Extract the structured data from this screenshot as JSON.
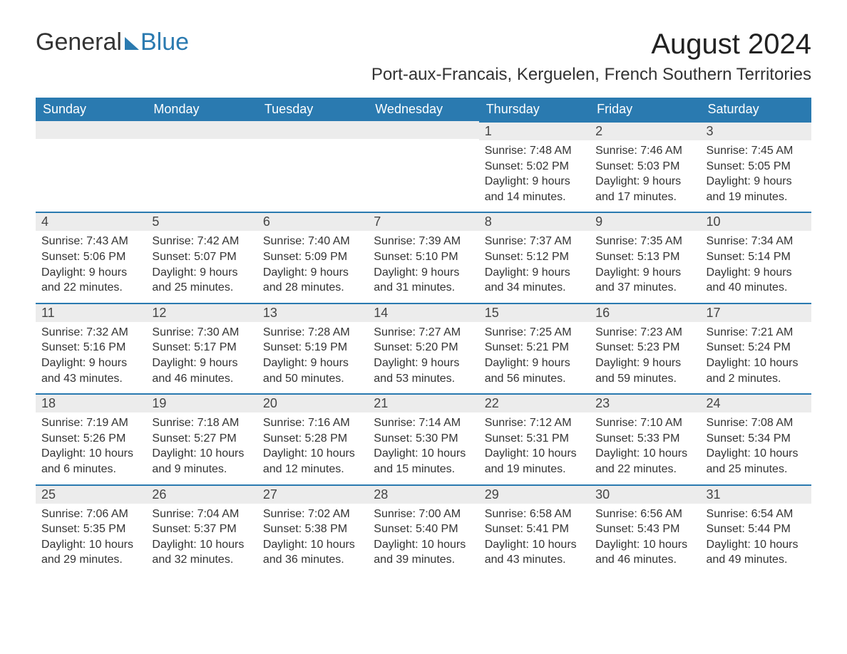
{
  "logo": {
    "general": "General",
    "blue": "Blue"
  },
  "month_title": "August 2024",
  "location": "Port-aux-Francais, Kerguelen, French Southern Territories",
  "colors": {
    "header_bg": "#2a7ab0",
    "header_text": "#ffffff",
    "daynum_bg": "#ececec",
    "daynum_border_top": "#2a7ab0",
    "body_text": "#333333",
    "page_bg": "#ffffff"
  },
  "day_headers": [
    "Sunday",
    "Monday",
    "Tuesday",
    "Wednesday",
    "Thursday",
    "Friday",
    "Saturday"
  ],
  "weeks": [
    [
      null,
      null,
      null,
      null,
      {
        "d": "1",
        "sunrise": "Sunrise: 7:48 AM",
        "sunset": "Sunset: 5:02 PM",
        "daylight": "Daylight: 9 hours and 14 minutes."
      },
      {
        "d": "2",
        "sunrise": "Sunrise: 7:46 AM",
        "sunset": "Sunset: 5:03 PM",
        "daylight": "Daylight: 9 hours and 17 minutes."
      },
      {
        "d": "3",
        "sunrise": "Sunrise: 7:45 AM",
        "sunset": "Sunset: 5:05 PM",
        "daylight": "Daylight: 9 hours and 19 minutes."
      }
    ],
    [
      {
        "d": "4",
        "sunrise": "Sunrise: 7:43 AM",
        "sunset": "Sunset: 5:06 PM",
        "daylight": "Daylight: 9 hours and 22 minutes."
      },
      {
        "d": "5",
        "sunrise": "Sunrise: 7:42 AM",
        "sunset": "Sunset: 5:07 PM",
        "daylight": "Daylight: 9 hours and 25 minutes."
      },
      {
        "d": "6",
        "sunrise": "Sunrise: 7:40 AM",
        "sunset": "Sunset: 5:09 PM",
        "daylight": "Daylight: 9 hours and 28 minutes."
      },
      {
        "d": "7",
        "sunrise": "Sunrise: 7:39 AM",
        "sunset": "Sunset: 5:10 PM",
        "daylight": "Daylight: 9 hours and 31 minutes."
      },
      {
        "d": "8",
        "sunrise": "Sunrise: 7:37 AM",
        "sunset": "Sunset: 5:12 PM",
        "daylight": "Daylight: 9 hours and 34 minutes."
      },
      {
        "d": "9",
        "sunrise": "Sunrise: 7:35 AM",
        "sunset": "Sunset: 5:13 PM",
        "daylight": "Daylight: 9 hours and 37 minutes."
      },
      {
        "d": "10",
        "sunrise": "Sunrise: 7:34 AM",
        "sunset": "Sunset: 5:14 PM",
        "daylight": "Daylight: 9 hours and 40 minutes."
      }
    ],
    [
      {
        "d": "11",
        "sunrise": "Sunrise: 7:32 AM",
        "sunset": "Sunset: 5:16 PM",
        "daylight": "Daylight: 9 hours and 43 minutes."
      },
      {
        "d": "12",
        "sunrise": "Sunrise: 7:30 AM",
        "sunset": "Sunset: 5:17 PM",
        "daylight": "Daylight: 9 hours and 46 minutes."
      },
      {
        "d": "13",
        "sunrise": "Sunrise: 7:28 AM",
        "sunset": "Sunset: 5:19 PM",
        "daylight": "Daylight: 9 hours and 50 minutes."
      },
      {
        "d": "14",
        "sunrise": "Sunrise: 7:27 AM",
        "sunset": "Sunset: 5:20 PM",
        "daylight": "Daylight: 9 hours and 53 minutes."
      },
      {
        "d": "15",
        "sunrise": "Sunrise: 7:25 AM",
        "sunset": "Sunset: 5:21 PM",
        "daylight": "Daylight: 9 hours and 56 minutes."
      },
      {
        "d": "16",
        "sunrise": "Sunrise: 7:23 AM",
        "sunset": "Sunset: 5:23 PM",
        "daylight": "Daylight: 9 hours and 59 minutes."
      },
      {
        "d": "17",
        "sunrise": "Sunrise: 7:21 AM",
        "sunset": "Sunset: 5:24 PM",
        "daylight": "Daylight: 10 hours and 2 minutes."
      }
    ],
    [
      {
        "d": "18",
        "sunrise": "Sunrise: 7:19 AM",
        "sunset": "Sunset: 5:26 PM",
        "daylight": "Daylight: 10 hours and 6 minutes."
      },
      {
        "d": "19",
        "sunrise": "Sunrise: 7:18 AM",
        "sunset": "Sunset: 5:27 PM",
        "daylight": "Daylight: 10 hours and 9 minutes."
      },
      {
        "d": "20",
        "sunrise": "Sunrise: 7:16 AM",
        "sunset": "Sunset: 5:28 PM",
        "daylight": "Daylight: 10 hours and 12 minutes."
      },
      {
        "d": "21",
        "sunrise": "Sunrise: 7:14 AM",
        "sunset": "Sunset: 5:30 PM",
        "daylight": "Daylight: 10 hours and 15 minutes."
      },
      {
        "d": "22",
        "sunrise": "Sunrise: 7:12 AM",
        "sunset": "Sunset: 5:31 PM",
        "daylight": "Daylight: 10 hours and 19 minutes."
      },
      {
        "d": "23",
        "sunrise": "Sunrise: 7:10 AM",
        "sunset": "Sunset: 5:33 PM",
        "daylight": "Daylight: 10 hours and 22 minutes."
      },
      {
        "d": "24",
        "sunrise": "Sunrise: 7:08 AM",
        "sunset": "Sunset: 5:34 PM",
        "daylight": "Daylight: 10 hours and 25 minutes."
      }
    ],
    [
      {
        "d": "25",
        "sunrise": "Sunrise: 7:06 AM",
        "sunset": "Sunset: 5:35 PM",
        "daylight": "Daylight: 10 hours and 29 minutes."
      },
      {
        "d": "26",
        "sunrise": "Sunrise: 7:04 AM",
        "sunset": "Sunset: 5:37 PM",
        "daylight": "Daylight: 10 hours and 32 minutes."
      },
      {
        "d": "27",
        "sunrise": "Sunrise: 7:02 AM",
        "sunset": "Sunset: 5:38 PM",
        "daylight": "Daylight: 10 hours and 36 minutes."
      },
      {
        "d": "28",
        "sunrise": "Sunrise: 7:00 AM",
        "sunset": "Sunset: 5:40 PM",
        "daylight": "Daylight: 10 hours and 39 minutes."
      },
      {
        "d": "29",
        "sunrise": "Sunrise: 6:58 AM",
        "sunset": "Sunset: 5:41 PM",
        "daylight": "Daylight: 10 hours and 43 minutes."
      },
      {
        "d": "30",
        "sunrise": "Sunrise: 6:56 AM",
        "sunset": "Sunset: 5:43 PM",
        "daylight": "Daylight: 10 hours and 46 minutes."
      },
      {
        "d": "31",
        "sunrise": "Sunrise: 6:54 AM",
        "sunset": "Sunset: 5:44 PM",
        "daylight": "Daylight: 10 hours and 49 minutes."
      }
    ]
  ]
}
